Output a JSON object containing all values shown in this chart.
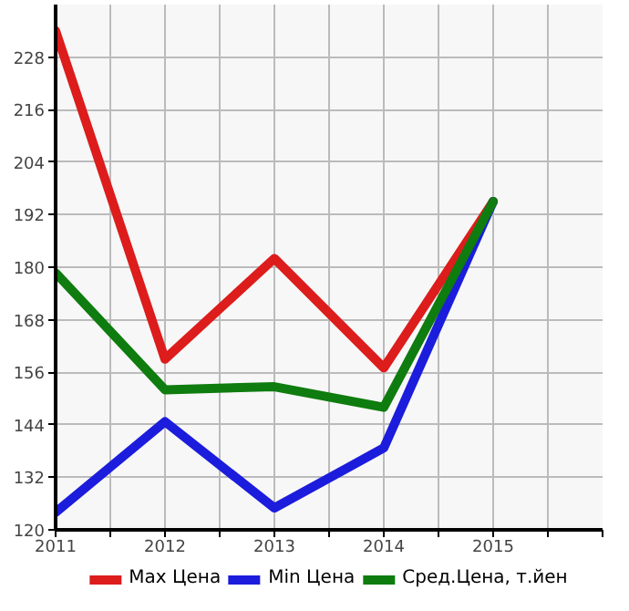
{
  "chart_data": {
    "type": "line",
    "x": [
      2011,
      2012,
      2013,
      2014,
      2015
    ],
    "series": [
      {
        "name": "Max Цена",
        "color": "#dd1c1c",
        "values": [
          234,
          159,
          182,
          157,
          195
        ]
      },
      {
        "name": "Min Цена",
        "color": "#1c1cdd",
        "values": [
          124,
          144.7,
          125,
          138.7,
          195
        ]
      },
      {
        "name": "Сред.Цена, т.йен",
        "color": "#0e7c0e",
        "values": [
          178.7,
          152,
          152.7,
          148,
          195
        ]
      }
    ],
    "xlim": [
      2011,
      2016
    ],
    "ylim": [
      120,
      240
    ],
    "xticks": [
      2011,
      {
        "value": 2011.5,
        "label": null
      },
      2012,
      {
        "value": 2012.5,
        "label": null
      },
      2013,
      {
        "value": 2013.5,
        "label": null
      },
      2014,
      {
        "value": 2014.5,
        "label": null
      },
      2015,
      {
        "value": 2015.5,
        "label": null
      },
      {
        "value": 2016,
        "label": null
      }
    ],
    "yticks": [
      120,
      132,
      144,
      156,
      168,
      180,
      192,
      204,
      216,
      228
    ],
    "grid": true,
    "legend": "bottom",
    "marker": "none",
    "line_style": "solid"
  }
}
